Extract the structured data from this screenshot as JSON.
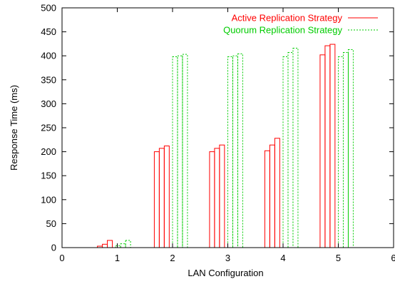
{
  "chart_data": {
    "type": "bar",
    "xlabel": "LAN Configuration",
    "ylabel": "Response Time (ms)",
    "xlim": [
      0,
      6
    ],
    "ylim": [
      0,
      500
    ],
    "xticks": [
      "0",
      "1",
      "2",
      "3",
      "4",
      "5",
      "6"
    ],
    "yticks": [
      "0",
      "50",
      "100",
      "150",
      "200",
      "250",
      "300",
      "350",
      "400",
      "450",
      "500"
    ],
    "grid": false,
    "legend_position": "top-right",
    "bar_width": 0.09,
    "series": [
      {
        "name": "Active Replication Strategy",
        "color": "#ff0000",
        "dash": "solid",
        "bars": [
          {
            "x": 0.64,
            "y": 3
          },
          {
            "x": 0.73,
            "y": 7
          },
          {
            "x": 0.82,
            "y": 15
          },
          {
            "x": 1.67,
            "y": 200
          },
          {
            "x": 1.76,
            "y": 207
          },
          {
            "x": 1.85,
            "y": 212
          },
          {
            "x": 2.67,
            "y": 200
          },
          {
            "x": 2.76,
            "y": 207
          },
          {
            "x": 2.85,
            "y": 214
          },
          {
            "x": 3.67,
            "y": 202
          },
          {
            "x": 3.76,
            "y": 214
          },
          {
            "x": 3.85,
            "y": 228
          },
          {
            "x": 4.67,
            "y": 402
          },
          {
            "x": 4.76,
            "y": 421
          },
          {
            "x": 4.85,
            "y": 424
          }
        ]
      },
      {
        "name": "Quorum Replication Strategy",
        "color": "#00cc00",
        "dash": "dashed",
        "bars": [
          {
            "x": 0.97,
            "y": 4
          },
          {
            "x": 1.06,
            "y": 8
          },
          {
            "x": 1.15,
            "y": 15
          },
          {
            "x": 2.0,
            "y": 398
          },
          {
            "x": 2.09,
            "y": 400
          },
          {
            "x": 2.18,
            "y": 403
          },
          {
            "x": 3.0,
            "y": 398
          },
          {
            "x": 3.09,
            "y": 400
          },
          {
            "x": 3.18,
            "y": 404
          },
          {
            "x": 4.0,
            "y": 398
          },
          {
            "x": 4.09,
            "y": 407
          },
          {
            "x": 4.18,
            "y": 416
          },
          {
            "x": 5.0,
            "y": 398
          },
          {
            "x": 5.09,
            "y": 407
          },
          {
            "x": 5.18,
            "y": 413
          }
        ]
      }
    ]
  }
}
